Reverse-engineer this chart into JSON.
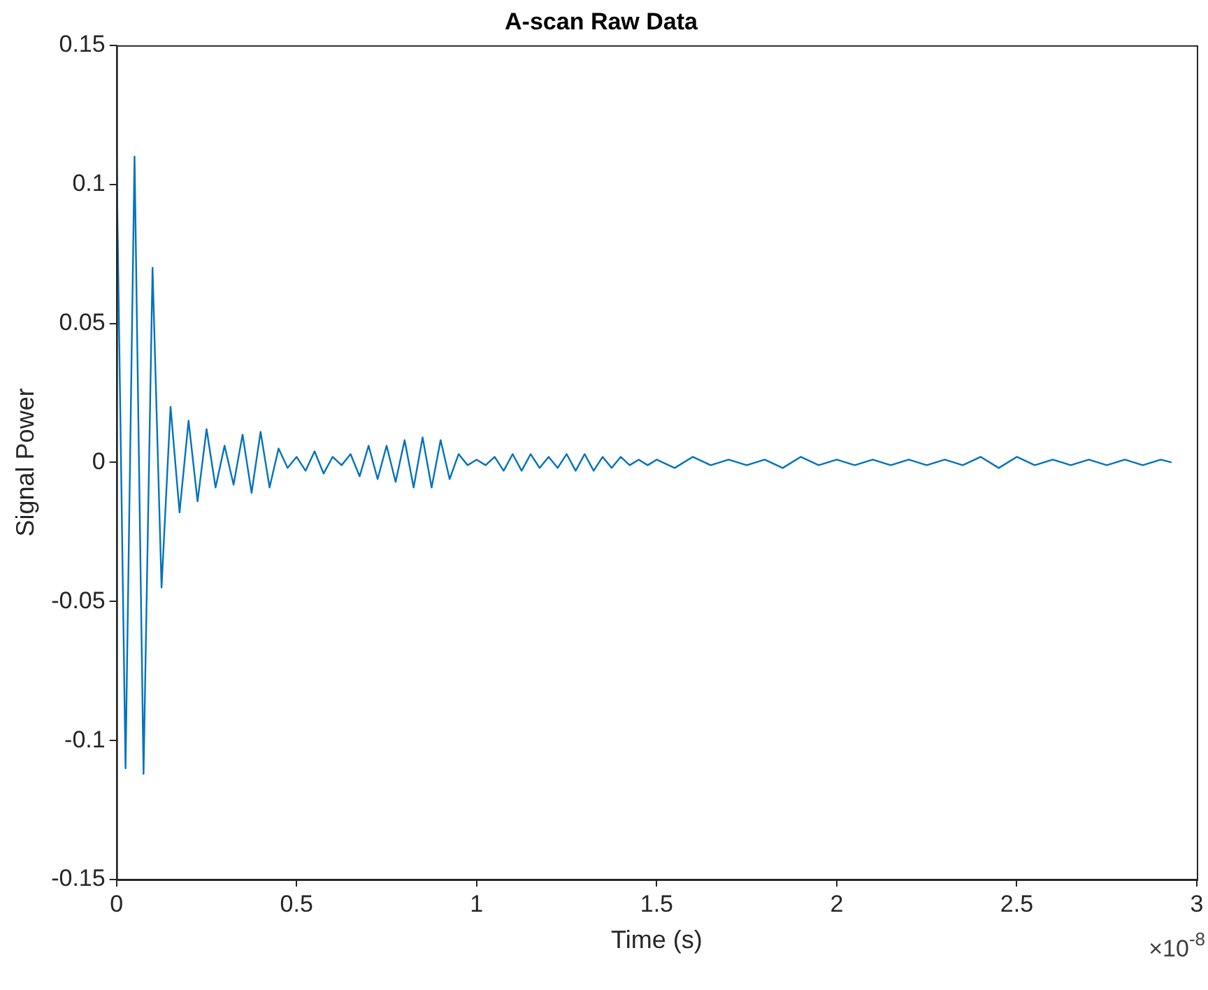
{
  "chart_data": {
    "type": "line",
    "title": "A-scan Raw Data",
    "xlabel": "Time (s)",
    "ylabel": "Signal Power",
    "annotations": [
      "×10$^{-8}$"
    ],
    "xlim": [
      0,
      3
    ],
    "xticks": [
      0,
      0.5,
      1,
      1.5,
      2,
      2.5,
      3
    ],
    "ylim": [
      -0.15,
      0.15
    ],
    "yticks": [
      -0.15,
      -0.1,
      -0.05,
      0,
      0.05,
      0.1,
      0.15
    ],
    "grid": false,
    "legend": false,
    "marker": "none",
    "line_style": "solid",
    "series": [
      {
        "color": "#0072bd",
        "x": [
          0,
          0.025,
          0.05,
          0.075,
          0.1,
          0.125,
          0.15,
          0.175,
          0.2,
          0.225,
          0.25,
          0.275,
          0.3,
          0.325,
          0.35,
          0.375,
          0.4,
          0.425,
          0.45,
          0.475,
          0.5,
          0.525,
          0.55,
          0.575,
          0.6,
          0.625,
          0.65,
          0.675,
          0.7,
          0.725,
          0.75,
          0.775,
          0.8,
          0.825,
          0.85,
          0.875,
          0.9,
          0.925,
          0.95,
          0.975,
          1,
          1.025,
          1.05,
          1.075,
          1.1,
          1.125,
          1.15,
          1.175,
          1.2,
          1.225,
          1.25,
          1.275,
          1.3,
          1.325,
          1.35,
          1.375,
          1.4,
          1.425,
          1.45,
          1.475,
          1.5,
          1.55,
          1.6,
          1.65,
          1.7,
          1.75,
          1.8,
          1.85,
          1.9,
          1.95,
          2,
          2.05,
          2.1,
          2.15,
          2.2,
          2.25,
          2.3,
          2.35,
          2.4,
          2.45,
          2.5,
          2.55,
          2.6,
          2.65,
          2.7,
          2.75,
          2.8,
          2.85,
          2.9,
          2.93
        ],
        "values": [
          0.11,
          -0.11,
          0.11,
          -0.112,
          0.07,
          -0.045,
          0.02,
          -0.018,
          0.015,
          -0.014,
          0.012,
          -0.009,
          0.006,
          -0.008,
          0.01,
          -0.011,
          0.011,
          -0.009,
          0.005,
          -0.002,
          0.002,
          -0.003,
          0.004,
          -0.004,
          0.002,
          -0.001,
          0.003,
          -0.005,
          0.006,
          -0.006,
          0.006,
          -0.007,
          0.008,
          -0.009,
          0.009,
          -0.009,
          0.008,
          -0.006,
          0.003,
          -0.001,
          0.001,
          -0.001,
          0.002,
          -0.003,
          0.003,
          -0.003,
          0.003,
          -0.002,
          0.002,
          -0.002,
          0.003,
          -0.003,
          0.003,
          -0.003,
          0.002,
          -0.002,
          0.002,
          -0.001,
          0.001,
          -0.001,
          0.001,
          -0.002,
          0.002,
          -0.001,
          0.001,
          -0.001,
          0.001,
          -0.002,
          0.002,
          -0.001,
          0.001,
          -0.001,
          0.001,
          -0.001,
          0.001,
          -0.001,
          0.001,
          -0.001,
          0.002,
          -0.002,
          0.002,
          -0.001,
          0.001,
          -0.001,
          0.001,
          -0.001,
          0.001,
          -0.001,
          0.001,
          0
        ]
      }
    ]
  }
}
